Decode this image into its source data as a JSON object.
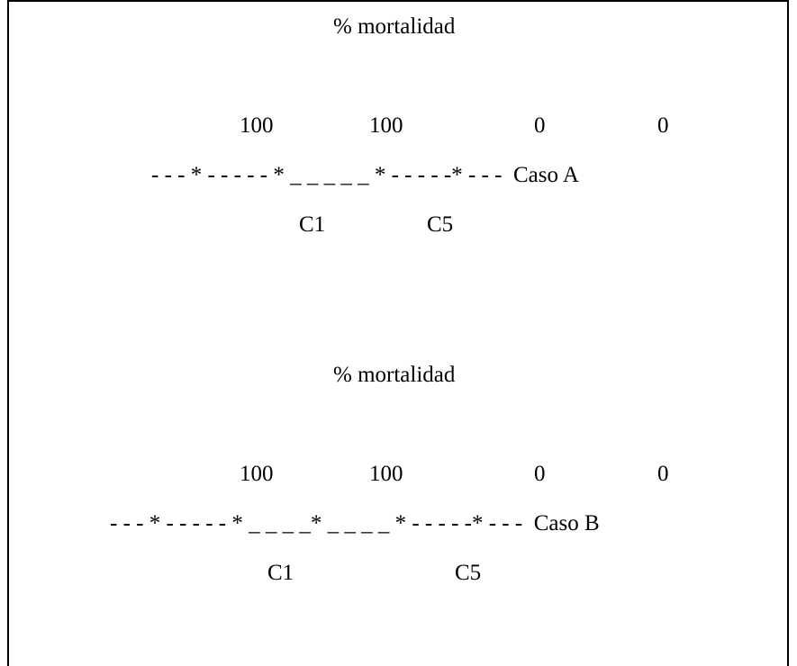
{
  "case_a": {
    "header": "% mortalidad",
    "values": [
      "100",
      "100",
      "0",
      "0"
    ],
    "line": "- - - * - - - - - * _ _ _ _ _ * - - - - -* - - -  Caso A",
    "labels": [
      "C1",
      "C5"
    ]
  },
  "case_b": {
    "header": "% mortalidad",
    "values": [
      "100",
      "100",
      "0",
      "0"
    ],
    "line": "- - - * - - - - - * _ _ _ _* _ _ _ _ * - - - - -* - - -  Caso B",
    "labels": [
      "C1",
      "C5"
    ]
  }
}
